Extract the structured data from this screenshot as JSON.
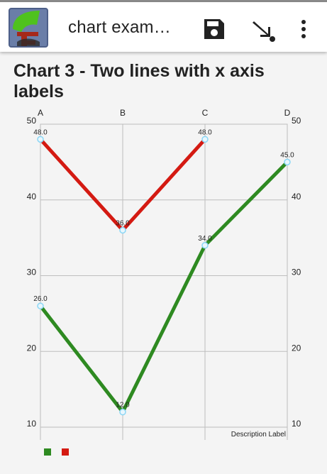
{
  "appbar": {
    "title": "chart exam…",
    "icons": [
      "app-logo-icon",
      "save-icon",
      "arrow-down-right-icon",
      "more-vert-icon"
    ]
  },
  "page_heading": "Chart 3 - Two lines with x axis labels",
  "colors": {
    "red_series": "#d41a12",
    "green_series": "#2e8a21",
    "point_fill": "#e8f6fd",
    "point_stroke": "#8ad6f5"
  },
  "chart_data": {
    "type": "line",
    "title": "",
    "categories": [
      "A",
      "B",
      "C",
      "D"
    ],
    "ylim": [
      10,
      50
    ],
    "yticks": [
      10,
      20,
      30,
      40,
      50
    ],
    "grid": true,
    "x_axis_position": "top",
    "y_axis_both_sides": true,
    "description_label": "Description Label",
    "series": [
      {
        "color": "#d41a12",
        "values": [
          48.0,
          36.0,
          48.0,
          null
        ],
        "labels": [
          "48.0",
          "36.0",
          "48.0",
          null
        ]
      },
      {
        "color": "#2e8a21",
        "values": [
          26.0,
          12.0,
          34.0,
          45.0
        ],
        "labels": [
          "26.0",
          "12.0",
          "34.0",
          "45.0"
        ]
      }
    ],
    "legend": {
      "position": "bottom-left",
      "colors": [
        "#2e8a21",
        "#d41a12"
      ]
    }
  }
}
